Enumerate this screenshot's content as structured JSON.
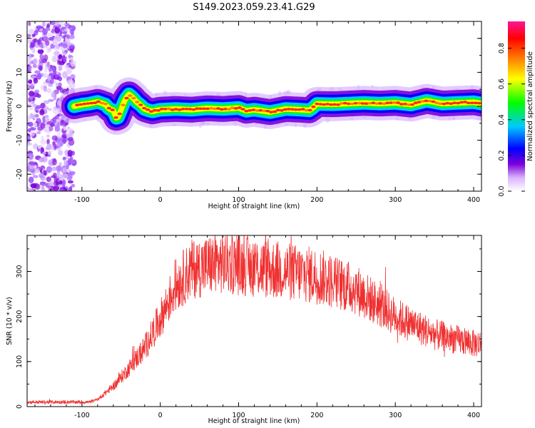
{
  "title": "S149.2023.059.23.41.G29",
  "chart_data": [
    {
      "type": "heatmap",
      "xlabel": "Height of straight line (km)",
      "ylabel": "Frequency (Hz)",
      "xlim": [
        -170,
        410
      ],
      "ylim": [
        -25,
        25
      ],
      "xticks": [
        -100,
        0,
        100,
        200,
        300,
        400
      ],
      "yticks": [
        -20,
        -10,
        0,
        10,
        20
      ],
      "colorbar": {
        "label": "Normalized spectral amplitude",
        "range": [
          0,
          0.95
        ],
        "ticks": [
          "0.0",
          "0.2",
          "0.4",
          "0.6",
          "0.8"
        ],
        "colors": [
          "#ffffff",
          "#7b00d9",
          "#0000ff",
          "#00c8ff",
          "#00ff00",
          "#ffff00",
          "#ff8000",
          "#ff0000",
          "#ff1493"
        ]
      },
      "ridge": {
        "x": [
          -110,
          -100,
          -90,
          -80,
          -70,
          -65,
          -60,
          -57,
          -55,
          -50,
          -45,
          -40,
          -35,
          -30,
          -25,
          -20,
          -15,
          -10,
          0,
          20,
          40,
          60,
          80,
          100,
          110,
          120,
          140,
          160,
          180,
          190,
          195,
          200,
          220,
          240,
          260,
          280,
          300,
          320,
          340,
          360,
          380,
          400,
          410
        ],
        "y": [
          0,
          0.5,
          0.8,
          1.3,
          0.5,
          -0.8,
          -1.2,
          -3,
          -3.8,
          -1,
          2,
          3.5,
          2.5,
          1.2,
          0.3,
          -0.8,
          -1.2,
          -1.5,
          -1,
          -0.8,
          -1,
          -0.6,
          -0.8,
          -0.5,
          -1.3,
          -1,
          -1.7,
          -0.8,
          -1,
          -1.2,
          -0.4,
          0.7,
          0.6,
          0.8,
          1,
          0.8,
          1,
          0.5,
          1.6,
          0.8,
          1,
          1.2,
          0.8
        ]
      },
      "noise_region_xmax": -110
    },
    {
      "type": "line",
      "xlabel": "Height of straight line (km)",
      "ylabel": "SNR (10 * v/v)",
      "xlim": [
        -170,
        410
      ],
      "ylim": [
        0,
        380
      ],
      "xticks": [
        -100,
        0,
        100,
        200,
        300,
        400
      ],
      "yticks": [
        0,
        100,
        200,
        300
      ],
      "color": "#f03030",
      "envelope": {
        "x": [
          -170,
          -90,
          -80,
          -60,
          -40,
          -20,
          0,
          20,
          40,
          80,
          120,
          160,
          200,
          250,
          300,
          350,
          400,
          410
        ],
        "y": [
          10,
          10,
          16,
          45,
          85,
          130,
          195,
          270,
          305,
          320,
          310,
          300,
          290,
          260,
          200,
          160,
          140,
          140
        ]
      }
    }
  ]
}
